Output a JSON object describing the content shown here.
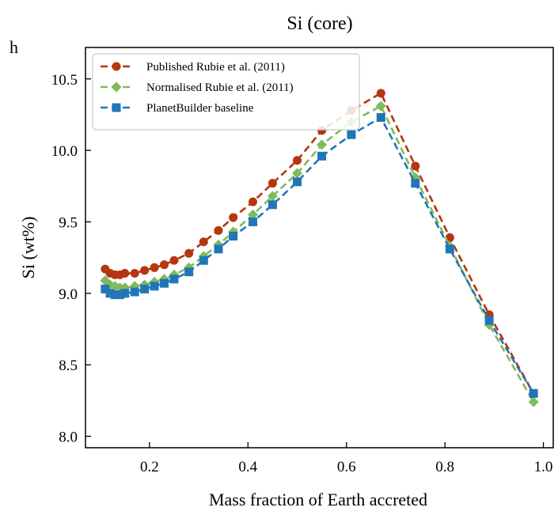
{
  "panel_label": "h",
  "chart_data": {
    "type": "line",
    "title": "Si (core)",
    "xlabel": "Mass fraction of Earth accreted",
    "ylabel": "Si (wt%)",
    "xlim": [
      0.07,
      1.02
    ],
    "ylim": [
      7.92,
      10.72
    ],
    "xticks": [
      0.2,
      0.4,
      0.6,
      0.8,
      1.0
    ],
    "xtick_labels": [
      "0.2",
      "0.4",
      "0.6",
      "0.8",
      "1.0"
    ],
    "yticks": [
      8.0,
      8.5,
      9.0,
      9.5,
      10.0,
      10.5
    ],
    "ytick_labels": [
      "8.0",
      "8.5",
      "9.0",
      "9.5",
      "10.0",
      "10.5"
    ],
    "grid": false,
    "legend_position": "top-left",
    "series": [
      {
        "name": "Published Rubie et al. (2011)",
        "color": "#b5360f",
        "marker": "circle",
        "linestyle": "dashed",
        "x": [
          0.11,
          0.12,
          0.13,
          0.14,
          0.15,
          0.17,
          0.19,
          0.21,
          0.23,
          0.25,
          0.28,
          0.31,
          0.34,
          0.37,
          0.41,
          0.45,
          0.5,
          0.55,
          0.61,
          0.67,
          0.74,
          0.81,
          0.89,
          0.98
        ],
        "y": [
          9.17,
          9.14,
          9.13,
          9.13,
          9.14,
          9.14,
          9.16,
          9.18,
          9.2,
          9.23,
          9.28,
          9.36,
          9.44,
          9.53,
          9.64,
          9.77,
          9.93,
          10.14,
          10.28,
          10.4,
          9.89,
          9.39,
          8.85,
          8.3
        ]
      },
      {
        "name": "Normalised Rubie et al. (2011)",
        "color": "#7fba5c",
        "marker": "diamond",
        "linestyle": "dashed",
        "x": [
          0.11,
          0.12,
          0.13,
          0.14,
          0.15,
          0.17,
          0.19,
          0.21,
          0.23,
          0.25,
          0.28,
          0.31,
          0.34,
          0.37,
          0.41,
          0.45,
          0.5,
          0.55,
          0.61,
          0.67,
          0.74,
          0.81,
          0.89,
          0.98
        ],
        "y": [
          9.09,
          9.06,
          9.05,
          9.04,
          9.04,
          9.05,
          9.06,
          9.08,
          9.1,
          9.13,
          9.18,
          9.26,
          9.34,
          9.43,
          9.55,
          9.68,
          9.84,
          10.04,
          10.2,
          10.31,
          9.81,
          9.33,
          8.78,
          8.24
        ]
      },
      {
        "name": "PlanetBuilder baseline",
        "color": "#2176b8",
        "marker": "square",
        "linestyle": "dashed",
        "x": [
          0.11,
          0.12,
          0.13,
          0.14,
          0.15,
          0.17,
          0.19,
          0.21,
          0.23,
          0.25,
          0.28,
          0.31,
          0.34,
          0.37,
          0.41,
          0.45,
          0.5,
          0.55,
          0.61,
          0.67,
          0.74,
          0.81,
          0.89,
          0.98
        ],
        "y": [
          9.03,
          9.0,
          8.99,
          8.99,
          9.0,
          9.01,
          9.03,
          9.05,
          9.07,
          9.1,
          9.15,
          9.23,
          9.31,
          9.4,
          9.5,
          9.62,
          9.78,
          9.96,
          10.11,
          10.23,
          9.77,
          9.31,
          8.81,
          8.3
        ]
      }
    ]
  }
}
